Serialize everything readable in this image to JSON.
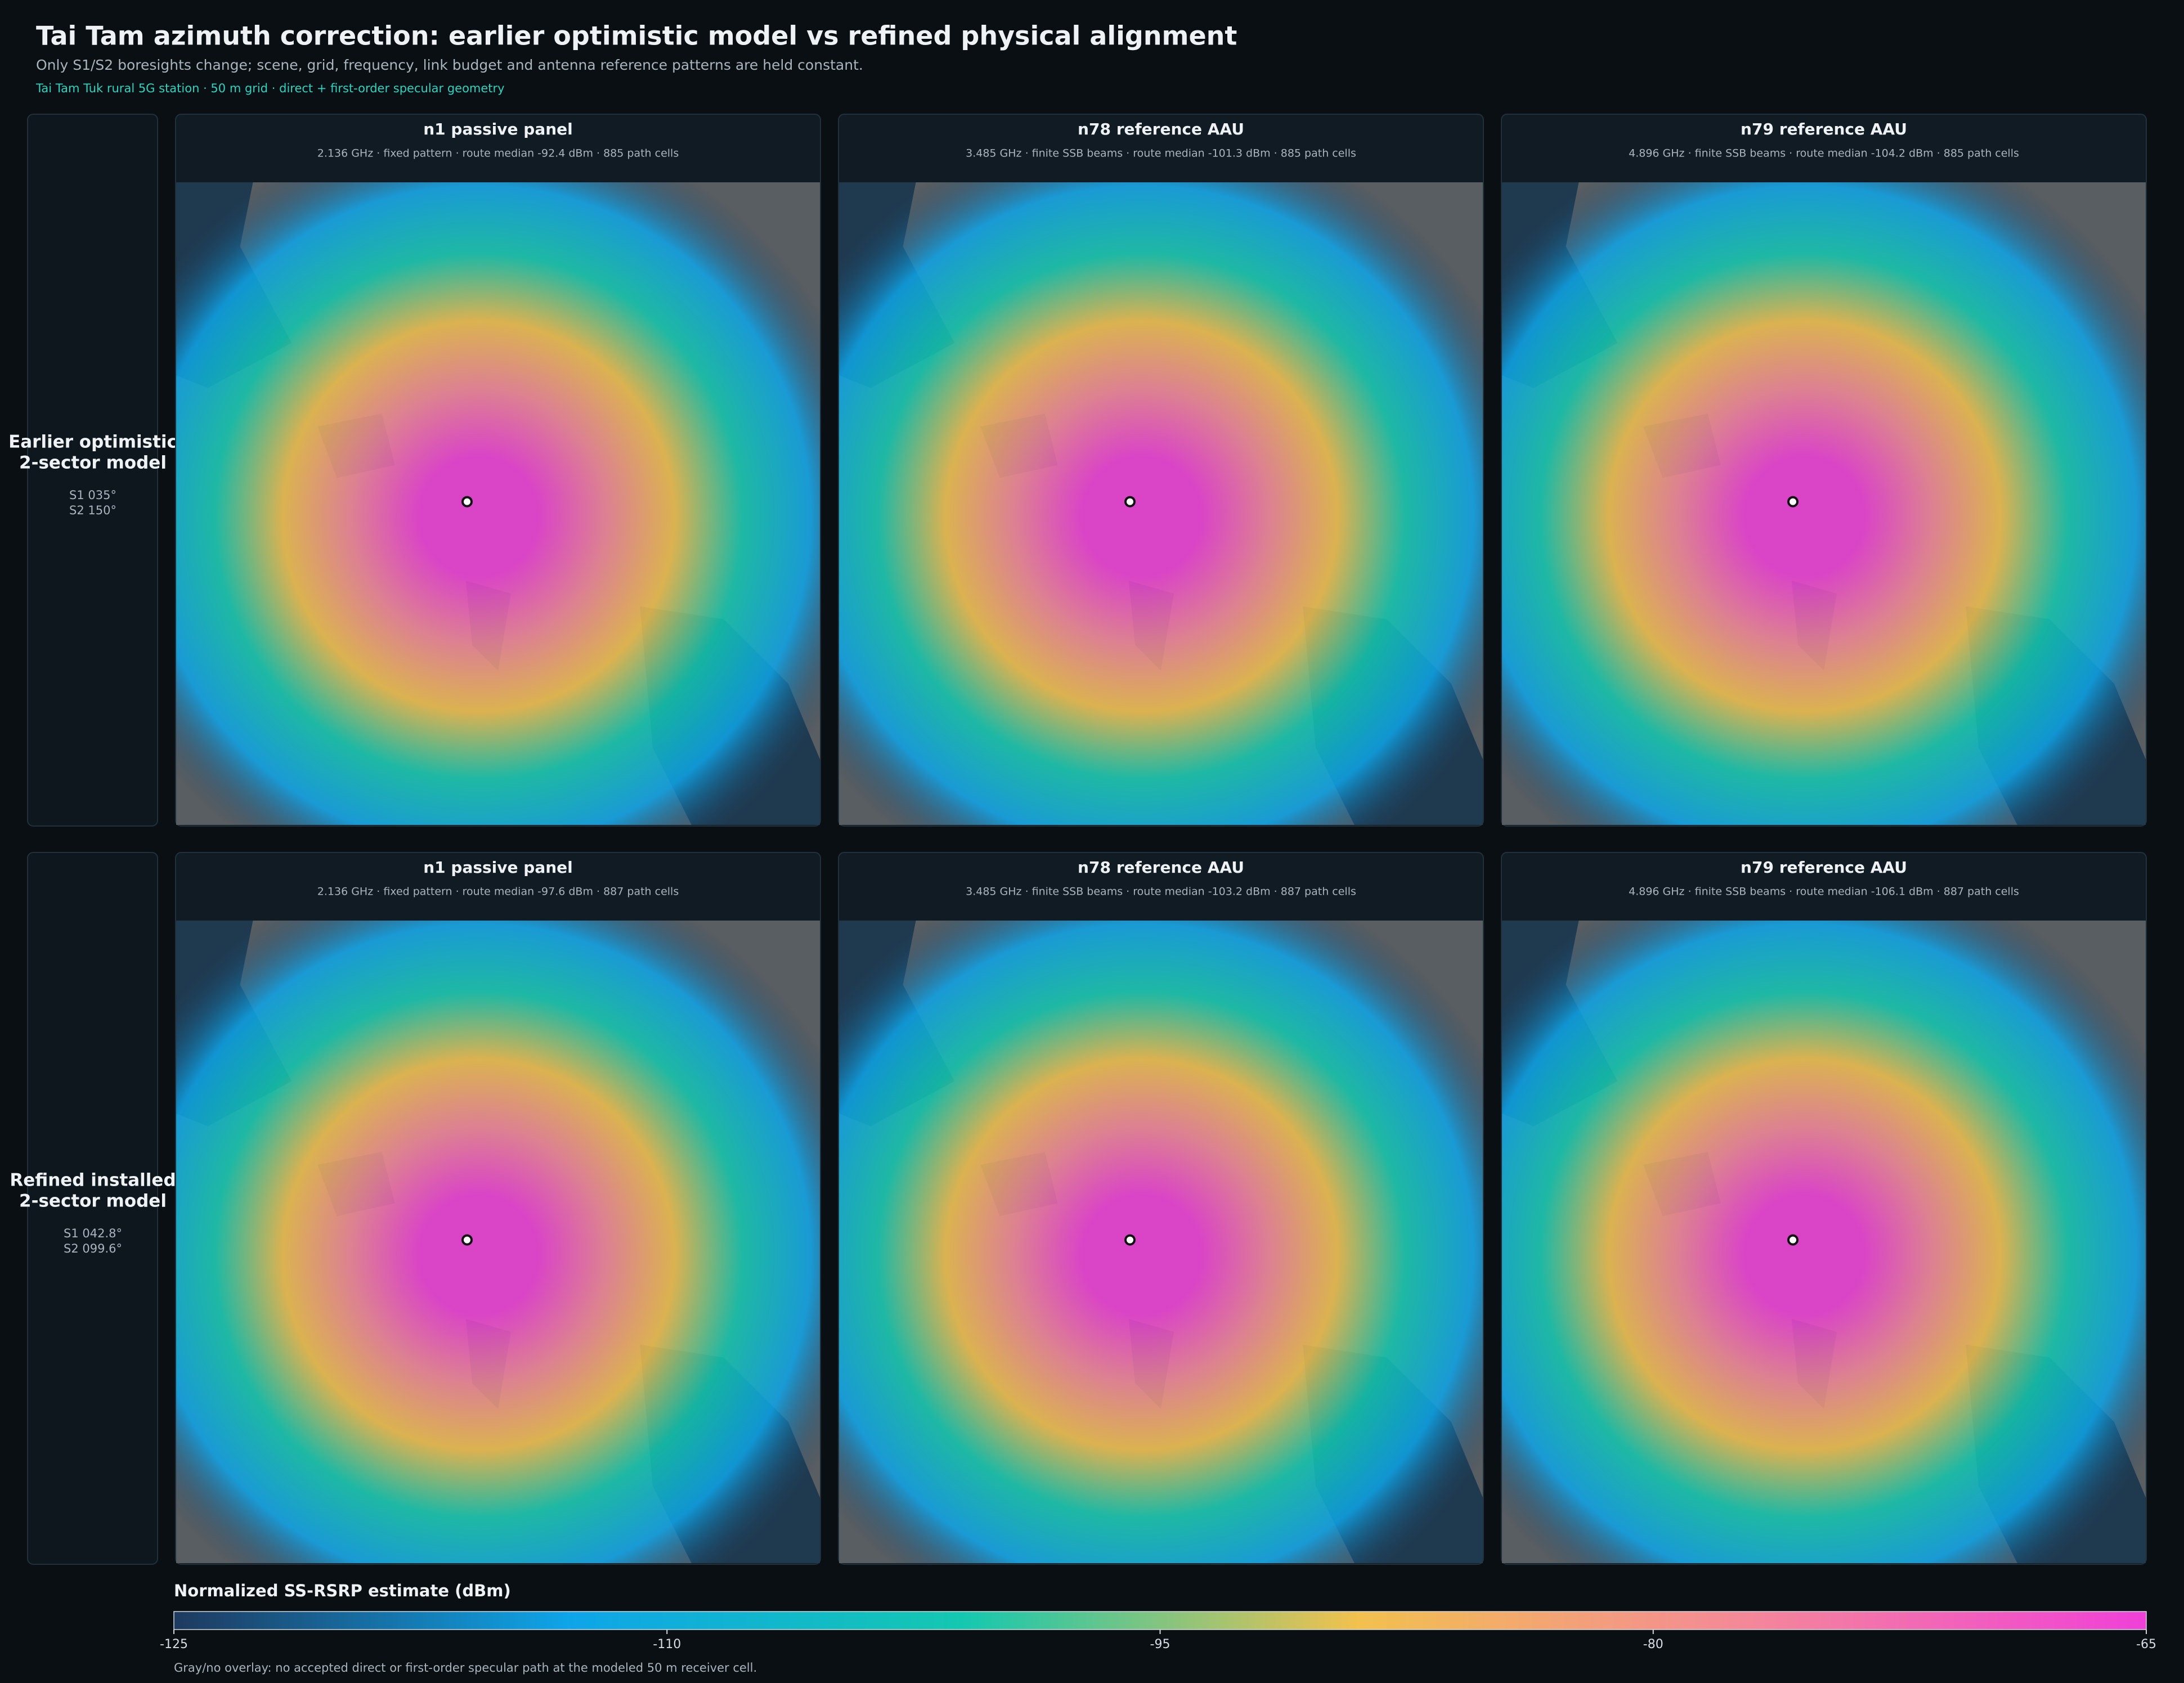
{
  "header": {
    "title": "Tai Tam azimuth correction: earlier optimistic model vs refined physical alignment",
    "subtitle": "Only S1/S2 boresights change; scene, grid, frequency, link budget and antenna reference patterns are held constant.",
    "tag": "Tai Tam Tuk rural 5G station · 50 m grid · direct + first-order specular geometry"
  },
  "rows": [
    {
      "label": [
        "Earlier optimistic",
        "2-sector model"
      ],
      "azimuths": [
        "S1 035°",
        "S2 150°"
      ],
      "panels": [
        {
          "title": "n1 passive panel",
          "sub": "2.136 GHz · fixed pattern  ·  route median -92.4 dBm  ·  885 path cells"
        },
        {
          "title": "n78 reference AAU",
          "sub": "3.485 GHz · finite SSB beams  ·  route median -101.3 dBm  ·  885 path cells"
        },
        {
          "title": "n79 reference AAU",
          "sub": "4.896 GHz · finite SSB beams  ·  route median -104.2 dBm  ·  885 path cells"
        }
      ]
    },
    {
      "label": [
        "Refined installed",
        "2-sector model"
      ],
      "azimuths": [
        "S1 042.8°",
        "S2 099.6°"
      ],
      "panels": [
        {
          "title": "n1 passive panel",
          "sub": "2.136 GHz · fixed pattern  ·  route median -97.6 dBm  ·  887 path cells"
        },
        {
          "title": "n78 reference AAU",
          "sub": "3.485 GHz · finite SSB beams  ·  route median -103.2 dBm  ·  887 path cells"
        },
        {
          "title": "n79 reference AAU",
          "sub": "4.896 GHz · finite SSB beams  ·  route median -106.1 dBm  ·  887 path cells"
        }
      ]
    }
  ],
  "colorbar": {
    "title": "Normalized SS-RSRP estimate (dBm)",
    "range": [
      -125,
      -65
    ],
    "ticks": [
      -125,
      -110,
      -95,
      -80,
      -65
    ],
    "colors": [
      "#1e3a5f",
      "#0ea5e9",
      "#14c8b0",
      "#f2c14e",
      "#f4879a",
      "#f040d8"
    ],
    "note": "Gray/no overlay: no accepted direct or first-order specular path at the modeled 50 m receiver cell."
  }
}
